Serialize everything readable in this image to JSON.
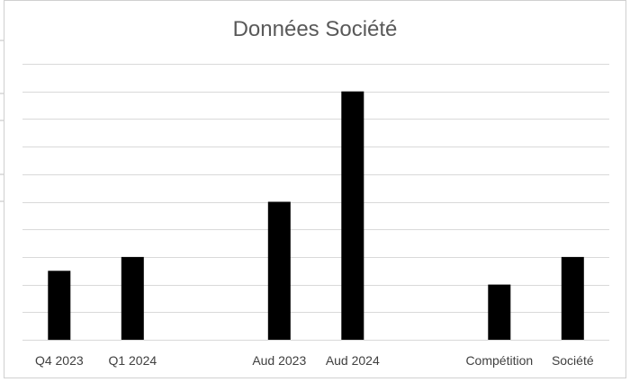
{
  "chart_data": {
    "type": "bar",
    "title": "Données Société",
    "categories": [
      "Q4 2023",
      "Q1 2024",
      "",
      "Aud 2023",
      "Aud 2024",
      "",
      "Compétition",
      "Société"
    ],
    "values": [
      2.5,
      3,
      null,
      5,
      9,
      null,
      2,
      3
    ],
    "ylim": [
      0,
      10
    ],
    "grid": true,
    "legend": "none",
    "colors": {
      "bar": "#000000",
      "grid": "#d9d9d9",
      "title": "#595959",
      "tick_label": "#404040"
    }
  }
}
